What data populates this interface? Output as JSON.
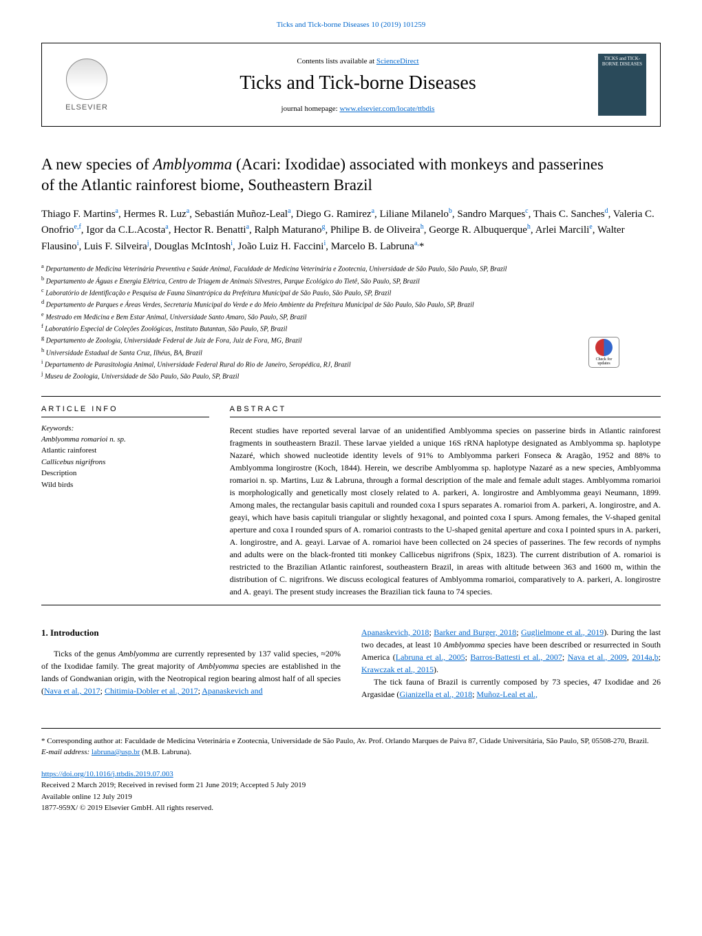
{
  "journal_ref": "Ticks and Tick-borne Diseases 10 (2019) 101259",
  "header": {
    "contents_prefix": "Contents lists available at ",
    "contents_link": "ScienceDirect",
    "journal_name": "Ticks and Tick-borne Diseases",
    "homepage_prefix": "journal homepage: ",
    "homepage_link": "www.elsevier.com/locate/ttbdis",
    "publisher": "ELSEVIER",
    "cover_text": "TICKS and TICK-BORNE DISEASES"
  },
  "check_updates": "Check for updates",
  "article": {
    "title_part1": "A new species of ",
    "title_italic": "Amblyomma",
    "title_part2": " (Acari: Ixodidae) associated with monkeys and passerines of the Atlantic rainforest biome, Southeastern Brazil",
    "authors_html": "Thiago F. Martins<sup>a</sup>, Hermes R. Luz<sup>a</sup>, Sebastián Muñoz-Leal<sup>a</sup>, Diego G. Ramirez<sup>a</sup>, Liliane Milanelo<sup>b</sup>, Sandro Marques<sup>c</sup>, Thais C. Sanches<sup>d</sup>, Valeria C. Onofrio<sup>e,f</sup>, Igor da C.L.Acosta<sup>a</sup>, Hector R. Benatti<sup>a</sup>, Ralph Maturano<sup>g</sup>, Philipe B. de Oliveira<sup>h</sup>, George R. Albuquerque<sup>h</sup>, Arlei Marcili<sup>e</sup>, Walter Flausino<sup>i</sup>, Luis F. Silveira<sup>j</sup>, Douglas McIntosh<sup>i</sup>, João Luiz H. Faccini<sup>i</sup>, Marcelo B. Labruna<sup>a,</sup>*"
  },
  "affiliations": [
    {
      "sup": "a",
      "text": " Departamento de Medicina Veterinária Preventiva e Saúde Animal, Faculdade de Medicina Veterinária e Zootecnia, Universidade de São Paulo, São Paulo, SP, Brazil"
    },
    {
      "sup": "b",
      "text": " Departamento de Águas e Energia Elétrica, Centro de Triagem de Animais Silvestres, Parque Ecológico do Tietê, São Paulo, SP, Brazil"
    },
    {
      "sup": "c",
      "text": " Laboratório de Identificação e Pesquisa de Fauna Sinantrópica da Prefeitura Municipal de São Paulo, São Paulo, SP, Brazil"
    },
    {
      "sup": "d",
      "text": " Departamento de Parques e Áreas Verdes, Secretaria Municipal do Verde e do Meio Ambiente da Prefeitura Municipal de São Paulo, São Paulo, SP, Brazil"
    },
    {
      "sup": "e",
      "text": " Mestrado em Medicina e Bem Estar Animal, Universidade Santo Amaro, São Paulo, SP, Brazil"
    },
    {
      "sup": "f",
      "text": " Laboratório Especial de Coleções Zoológicas, Instituto Butantan, São Paulo, SP, Brazil"
    },
    {
      "sup": "g",
      "text": " Departamento de Zoologia, Universidade Federal de Juiz de Fora, Juiz de Fora, MG, Brazil"
    },
    {
      "sup": "h",
      "text": " Universidade Estadual de Santa Cruz, Ilhéus, BA, Brazil"
    },
    {
      "sup": "i",
      "text": " Departamento de Parasitologia Animal, Universidade Federal Rural do Rio de Janeiro, Seropédica, RJ, Brazil"
    },
    {
      "sup": "j",
      "text": " Museu de Zoologia, Universidade de São Paulo, São Paulo, SP, Brazil"
    }
  ],
  "info": {
    "label": "ARTICLE INFO",
    "keywords_label": "Keywords:",
    "keywords": [
      "Amblyomma romarioi n. sp.",
      "Atlantic rainforest",
      "Callicebus nigrifrons",
      "Description",
      "Wild birds"
    ]
  },
  "abstract": {
    "label": "ABSTRACT",
    "text": "Recent studies have reported several larvae of an unidentified Amblyomma species on passerine birds in Atlantic rainforest fragments in southeastern Brazil. These larvae yielded a unique 16S rRNA haplotype designated as Amblyomma sp. haplotype Nazaré, which showed nucleotide identity levels of 91% to Amblyomma parkeri Fonseca & Aragão, 1952 and 88% to Amblyomma longirostre (Koch, 1844). Herein, we describe Amblyomma sp. haplotype Nazaré as a new species, Amblyomma romarioi n. sp. Martins, Luz & Labruna, through a formal description of the male and female adult stages. Amblyomma romarioi is morphologically and genetically most closely related to A. parkeri, A. longirostre and Amblyomma geayi Neumann, 1899. Among males, the rectangular basis capituli and rounded coxa I spurs separates A. romarioi from A. parkeri, A. longirostre, and A. geayi, which have basis capituli triangular or slightly hexagonal, and pointed coxa I spurs. Among females, the V-shaped genital aperture and coxa I rounded spurs of A. romarioi contrasts to the U-shaped genital aperture and coxa I pointed spurs in A. parkeri, A. longirostre, and A. geayi. Larvae of A. romarioi have been collected on 24 species of passerines. The few records of nymphs and adults were on the black-fronted titi monkey Callicebus nigrifrons (Spix, 1823). The current distribution of A. romarioi is restricted to the Brazilian Atlantic rainforest, southeastern Brazil, in areas with altitude between 363 and 1600 m, within the distribution of C. nigrifrons. We discuss ecological features of Amblyomma romarioi, comparatively to A. parkeri, A. longirostre and A. geayi. The present study increases the Brazilian tick fauna to 74 species."
  },
  "introduction": {
    "heading": "1. Introduction",
    "col1": "Ticks of the genus <i>Amblyomma</i> are currently represented by 137 valid species, ≈20% of the Ixodidae family. The great majority of <i>Amblyomma</i> species are established in the lands of Gondwanian origin, with the Neotropical region bearing almost half of all species (<a href='#'>Nava et al., 2017</a>; <a href='#'>Chitimia-Dobler et al., 2017</a>; <a href='#'>Apanaskevich and</a>",
    "col2": "<a href='#'>Apanaskevich, 2018</a>; <a href='#'>Barker and Burger, 2018</a>; <a href='#'>Guglielmone et al., 2019</a>). During the last two decades, at least 10 <i>Amblyomma</i> species have been described or resurrected in South America (<a href='#'>Labruna et al., 2005</a>; <a href='#'>Barros-Battesti et al., 2007</a>; <a href='#'>Nava et al., 2009</a>, <a href='#'>2014a</a>,<a href='#'>b</a>; <a href='#'>Krawczak et al., 2015</a>).",
    "col2_p2": "The tick fauna of Brazil is currently composed by 73 species, 47 Ixodidae and 26 Argasidae (<a href='#'>Gianizella et al., 2018</a>; <a href='#'>Muñoz-Leal et al.,</a>"
  },
  "footnote": {
    "corresponding": "* Corresponding author at: Faculdade de Medicina Veterinária e Zootecnia, Universidade de São Paulo, Av. Prof. Orlando Marques de Paiva 87, Cidade Universitária, São Paulo, SP, 05508-270, Brazil.",
    "email_label": "E-mail address: ",
    "email": "labruna@usp.br",
    "email_suffix": " (M.B. Labruna)."
  },
  "doi": {
    "link": "https://doi.org/10.1016/j.ttbdis.2019.07.003",
    "received": "Received 2 March 2019; Received in revised form 21 June 2019; Accepted 5 July 2019",
    "available": "Available online 12 July 2019",
    "copyright": "1877-959X/ © 2019 Elsevier GmbH. All rights reserved."
  }
}
